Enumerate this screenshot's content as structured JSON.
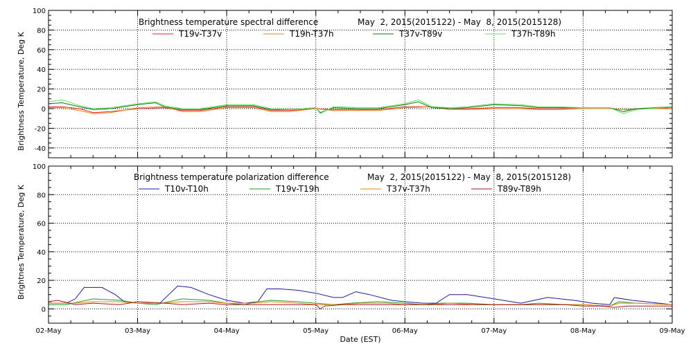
{
  "chart_data": [
    {
      "type": "line",
      "title": "Brightness temperature spectral difference",
      "date_range": "May  2, 2015(2015122) - May  8, 2015(2015128)",
      "ylabel": "Brightness Temperature, Deg K",
      "xlabel": "",
      "ylim": [
        -50,
        100
      ],
      "yticks": [
        -40,
        -20,
        0,
        20,
        40,
        60,
        80,
        100
      ],
      "x_tick_labels": [
        "02-May",
        "03-May",
        "04-May",
        "05-May",
        "06-May",
        "07-May",
        "08-May",
        "09-May"
      ],
      "xlim_days": [
        2,
        9
      ],
      "grid": true,
      "series": [
        {
          "name": "T19v-T37v",
          "color": "#e8251f",
          "x": [
            2.0,
            2.15,
            2.35,
            2.5,
            2.7,
            3.0,
            3.3,
            3.5,
            3.7,
            4.0,
            4.3,
            4.5,
            4.7,
            5.0,
            5.2,
            5.5,
            5.7,
            6.0,
            6.3,
            6.5,
            6.7,
            7.0,
            7.3,
            7.5,
            7.7,
            8.0,
            8.3,
            8.5,
            8.7,
            9.0
          ],
          "values": [
            2,
            2,
            0,
            -4,
            -3,
            0,
            1,
            -2,
            -2,
            2,
            2,
            -2,
            -2,
            0,
            -1,
            -1,
            -1,
            2,
            2,
            0,
            0,
            1,
            1,
            0,
            0,
            0,
            0,
            -1,
            0,
            1
          ]
        },
        {
          "name": "T19h-T37h",
          "color": "#f07f10",
          "x": [
            2.0,
            2.15,
            2.35,
            2.5,
            2.7,
            3.0,
            3.3,
            3.5,
            3.7,
            4.0,
            4.3,
            4.5,
            4.7,
            5.0,
            5.2,
            5.5,
            5.7,
            6.0,
            6.3,
            6.5,
            6.7,
            7.0,
            7.3,
            7.5,
            7.7,
            8.0,
            8.3,
            8.5,
            8.7,
            9.0
          ],
          "values": [
            1,
            1,
            -2,
            -5,
            -4,
            1,
            2,
            -3,
            -3,
            1,
            1,
            -3,
            -3,
            0,
            -2,
            -2,
            -2,
            1,
            2,
            -1,
            -1,
            0,
            0,
            -1,
            -1,
            0,
            0,
            -1,
            0,
            0
          ]
        },
        {
          "name": "T37v-T89v",
          "color": "#0a7a0a",
          "x": [
            2.0,
            2.15,
            2.35,
            2.5,
            2.7,
            3.0,
            3.2,
            3.3,
            3.5,
            3.7,
            4.0,
            4.3,
            4.5,
            4.7,
            5.0,
            5.05,
            5.2,
            5.5,
            5.7,
            6.0,
            6.15,
            6.3,
            6.5,
            6.7,
            7.0,
            7.3,
            7.5,
            7.7,
            8.0,
            8.3,
            8.45,
            8.6,
            9.0
          ],
          "values": [
            5,
            6,
            2,
            -1,
            0,
            4,
            6,
            2,
            -1,
            -1,
            3,
            3,
            -1,
            -1,
            1,
            -4,
            1,
            0,
            0,
            4,
            7,
            1,
            0,
            1,
            4,
            3,
            1,
            1,
            1,
            1,
            -3,
            0,
            2
          ]
        },
        {
          "name": "T37h-T89h",
          "color": "#5ce35c",
          "x": [
            2.0,
            2.15,
            2.35,
            2.5,
            2.7,
            3.0,
            3.2,
            3.3,
            3.5,
            3.7,
            4.0,
            4.3,
            4.5,
            4.7,
            5.0,
            5.05,
            5.2,
            5.5,
            5.7,
            6.0,
            6.15,
            6.3,
            6.5,
            6.7,
            7.0,
            7.3,
            7.5,
            7.7,
            8.0,
            8.3,
            8.45,
            8.6,
            9.0
          ],
          "values": [
            7,
            9,
            3,
            0,
            1,
            5,
            7,
            3,
            0,
            0,
            4,
            4,
            0,
            -1,
            1,
            -5,
            2,
            1,
            1,
            5,
            9,
            2,
            1,
            2,
            5,
            4,
            2,
            2,
            1,
            1,
            -5,
            -1,
            2
          ]
        }
      ]
    },
    {
      "type": "line",
      "title": "Brightness temperature polarization difference",
      "date_range": "May  2, 2015(2015122) - May  8, 2015(2015128)",
      "ylabel": "Brightnes Temperature, Deg K",
      "xlabel": "Date (EST)",
      "ylim": [
        -10,
        100
      ],
      "yticks": [
        0,
        20,
        40,
        60,
        80,
        100
      ],
      "x_tick_labels": [
        "02-May",
        "03-May",
        "04-May",
        "05-May",
        "06-May",
        "07-May",
        "08-May",
        "09-May"
      ],
      "xlim_days": [
        2,
        9
      ],
      "grid": true,
      "series": [
        {
          "name": "T10v-T10h",
          "color": "#1a1aa0",
          "x": [
            2.0,
            2.2,
            2.3,
            2.4,
            2.6,
            2.75,
            2.85,
            3.0,
            3.25,
            3.35,
            3.45,
            3.6,
            3.8,
            4.0,
            4.2,
            4.35,
            4.45,
            4.6,
            4.8,
            5.0,
            5.2,
            5.3,
            5.45,
            5.6,
            5.85,
            6.0,
            6.2,
            6.35,
            6.5,
            6.7,
            7.0,
            7.3,
            7.45,
            7.6,
            7.9,
            8.1,
            8.3,
            8.35,
            8.55,
            8.7,
            9.0
          ],
          "values": [
            4,
            4,
            7,
            15,
            15,
            10,
            5,
            4,
            4,
            10,
            16,
            15,
            10,
            6,
            4,
            5,
            14,
            14,
            13,
            11,
            8,
            8,
            12,
            10,
            6,
            5,
            4,
            4,
            10,
            10,
            7,
            4,
            6,
            8,
            6,
            4,
            3,
            8,
            6,
            5,
            3
          ]
        },
        {
          "name": "T19v-T19h",
          "color": "#1f9a1f",
          "x": [
            2.0,
            2.2,
            2.35,
            2.5,
            2.8,
            3.0,
            3.2,
            3.35,
            3.5,
            3.8,
            4.0,
            4.2,
            4.35,
            4.5,
            4.8,
            5.0,
            5.2,
            5.4,
            5.7,
            6.0,
            6.2,
            6.4,
            6.7,
            7.0,
            7.3,
            7.5,
            7.8,
            8.0,
            8.3,
            8.4,
            8.6,
            9.0
          ],
          "values": [
            3,
            3,
            5,
            7,
            6,
            4,
            3,
            5,
            7,
            6,
            4,
            3,
            5,
            6,
            5,
            4,
            3,
            4,
            5,
            4,
            3,
            4,
            4,
            3,
            3,
            4,
            3,
            3,
            2,
            5,
            4,
            3
          ]
        },
        {
          "name": "T37v-T37h",
          "color": "#f07f10",
          "x": [
            2.0,
            2.3,
            2.5,
            2.8,
            3.0,
            3.3,
            3.5,
            3.8,
            4.0,
            4.3,
            4.5,
            4.8,
            5.0,
            5.3,
            5.5,
            5.8,
            6.0,
            6.3,
            6.5,
            6.8,
            7.0,
            7.3,
            7.5,
            7.8,
            8.0,
            8.3,
            8.4,
            8.6,
            9.0
          ],
          "values": [
            4,
            4,
            5,
            5,
            4,
            4,
            5,
            5,
            4,
            4,
            5,
            4,
            3,
            3,
            4,
            4,
            3,
            3,
            4,
            3,
            3,
            3,
            3,
            3,
            3,
            2,
            4,
            4,
            3
          ]
        },
        {
          "name": "T89v-T89h",
          "color": "#a01818",
          "x": [
            2.0,
            2.1,
            2.3,
            2.5,
            2.8,
            3.0,
            3.3,
            3.5,
            3.8,
            4.0,
            4.3,
            4.5,
            4.8,
            5.0,
            5.05,
            5.1,
            5.3,
            5.5,
            5.8,
            6.0,
            6.3,
            6.5,
            6.8,
            7.0,
            7.3,
            7.5,
            7.8,
            8.0,
            8.2,
            8.35,
            8.5,
            8.6,
            9.0
          ],
          "values": [
            5,
            6,
            3,
            4,
            3,
            5,
            4,
            3,
            4,
            3,
            3,
            3,
            3,
            3,
            0,
            2,
            3,
            3,
            3,
            3,
            3,
            3,
            3,
            3,
            3,
            3,
            3,
            2,
            2,
            1,
            2,
            2,
            2
          ]
        }
      ]
    }
  ]
}
